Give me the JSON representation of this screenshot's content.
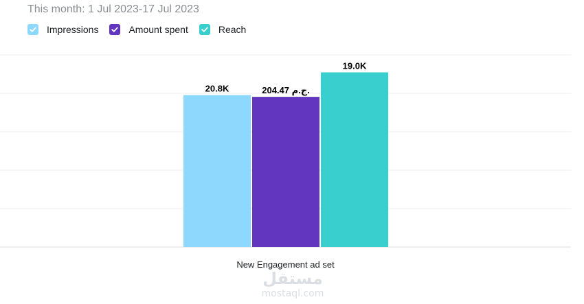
{
  "header": {
    "subtitle": "This month: 1 Jul 2023-17 Jul 2023"
  },
  "legend": [
    {
      "label": "Impressions",
      "color": "#8fd8fd",
      "icon": "check-icon"
    },
    {
      "label": "Amount spent",
      "color": "#6236bf",
      "icon": "check-icon"
    },
    {
      "label": "Reach",
      "color": "#3acfcf",
      "icon": "check-icon"
    }
  ],
  "watermark": {
    "logo_text": "مستقل",
    "url_text": "mostaql.com"
  },
  "chart_data": {
    "type": "bar",
    "categories": [
      "New Engagement ad set"
    ],
    "series": [
      {
        "name": "Impressions",
        "values": [
          0.87
        ],
        "label": "20.8K",
        "color": "#8fd8fd"
      },
      {
        "name": "Amount spent",
        "values": [
          0.86
        ],
        "label": "204.47 ج.م.",
        "color": "#6236bf"
      },
      {
        "name": "Reach",
        "values": [
          1.0
        ],
        "label": "19.0K",
        "color": "#3acfcf"
      }
    ],
    "ylim": [
      0,
      1.1
    ],
    "grid": true,
    "legend_position": "top-left",
    "xlabel": "",
    "ylabel": ""
  }
}
